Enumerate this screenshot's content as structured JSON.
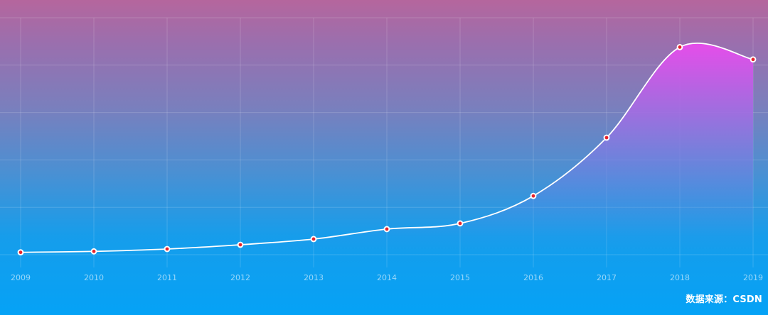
{
  "chart_data": {
    "type": "area",
    "categories": [
      "2009",
      "2010",
      "2011",
      "2012",
      "2013",
      "2014",
      "2015",
      "2016",
      "2017",
      "2018",
      "2019"
    ],
    "series": [
      {
        "values": [
          5,
          7,
          12,
          21,
          33,
          54,
          66,
          124,
          247,
          438,
          412
        ]
      }
    ],
    "xlabel": "",
    "ylabel": "",
    "ylim": [
      0,
      500
    ],
    "grid": true,
    "colors": {
      "line": "#ffffff",
      "marker_fill": "#e8232b",
      "marker_stroke": "#ffffff",
      "area_top": "#e64dea",
      "area_mid": "#8a78e0"
    }
  },
  "source": "数据来源：CSDN"
}
